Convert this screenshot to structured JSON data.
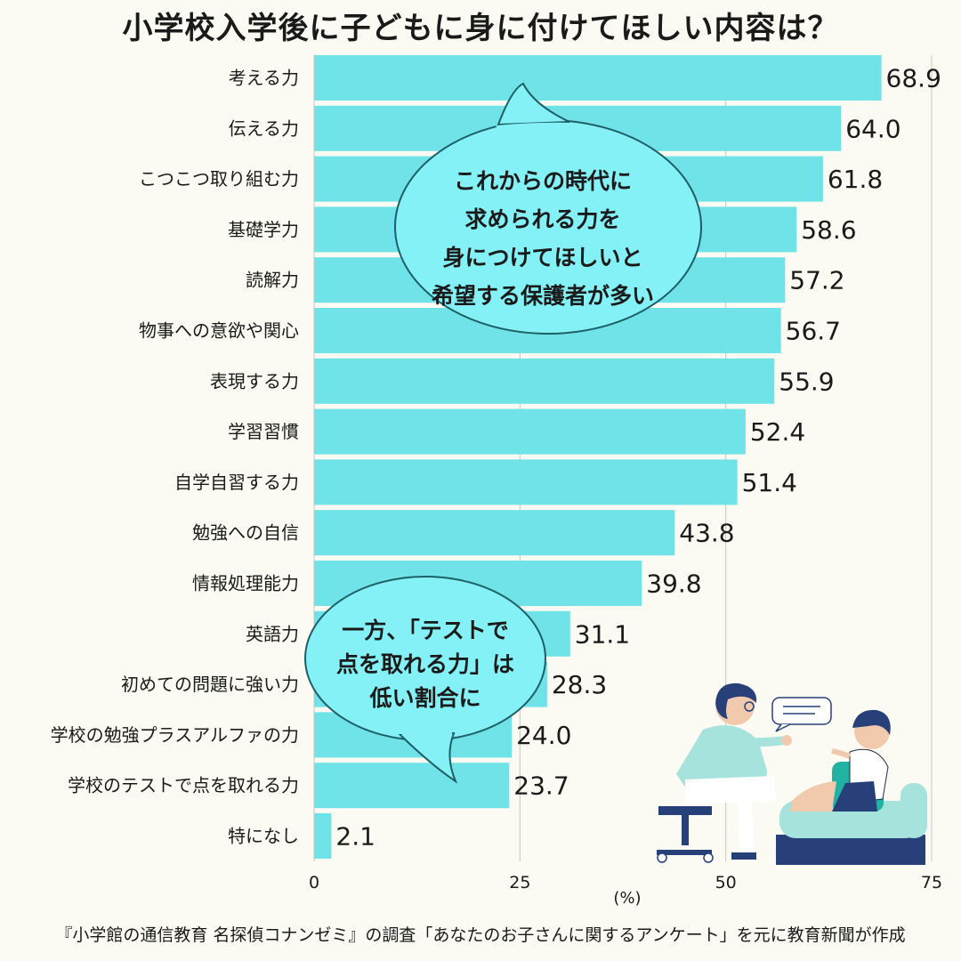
{
  "title": "小学校入学後に子どもに身に付けてほしい内容は？",
  "footer": "『小学館の通信教育 名探偵コナンゼミ』の調査「あなたのお子さんに関するアンケート」を元に教育新聞が作成",
  "colors": {
    "bar": "#6fe3e7",
    "bubble": "#84f1f6",
    "grid": "#c8c8c0",
    "background": "#fbfbf3"
  },
  "bubbles": {
    "top": [
      "これからの時代に",
      "求められる力を",
      "身につけてほしいと",
      "希望する保護者が多い"
    ],
    "bottom": [
      "一方、「テストで",
      "点を取れる力」は",
      "低い割合に"
    ]
  },
  "illustration": "teacher-and-child-icon",
  "chart_data": {
    "type": "bar",
    "orientation": "horizontal",
    "title": "小学校入学後に子どもに身に付けてほしい内容は？",
    "xlabel": "(%)",
    "ylabel": "",
    "xlim": [
      0,
      75
    ],
    "xticks": [
      "0",
      "25",
      "50",
      "75"
    ],
    "grid": true,
    "categories": [
      "考える力",
      "伝える力",
      "こつこつ取り組む力",
      "基礎学力",
      "読解力",
      "物事への意欲や関心",
      "表現する力",
      "学習習慣",
      "自学自習する力",
      "勉強への自信",
      "情報処理能力",
      "英語力",
      "初めての問題に強い力",
      "学校の勉強プラスアルファの力",
      "学校のテストで点を取れる力",
      "特になし"
    ],
    "values": [
      68.9,
      64.0,
      61.8,
      58.6,
      57.2,
      56.7,
      55.9,
      52.4,
      51.4,
      43.8,
      39.8,
      31.1,
      28.3,
      24.0,
      23.7,
      2.1
    ],
    "value_labels": [
      "68.9",
      "64.0",
      "61.8",
      "58.6",
      "57.2",
      "56.7",
      "55.9",
      "52.4",
      "51.4",
      "43.8",
      "39.8",
      "31.1",
      "28.3",
      "24.0",
      "23.7",
      "2.1"
    ]
  }
}
